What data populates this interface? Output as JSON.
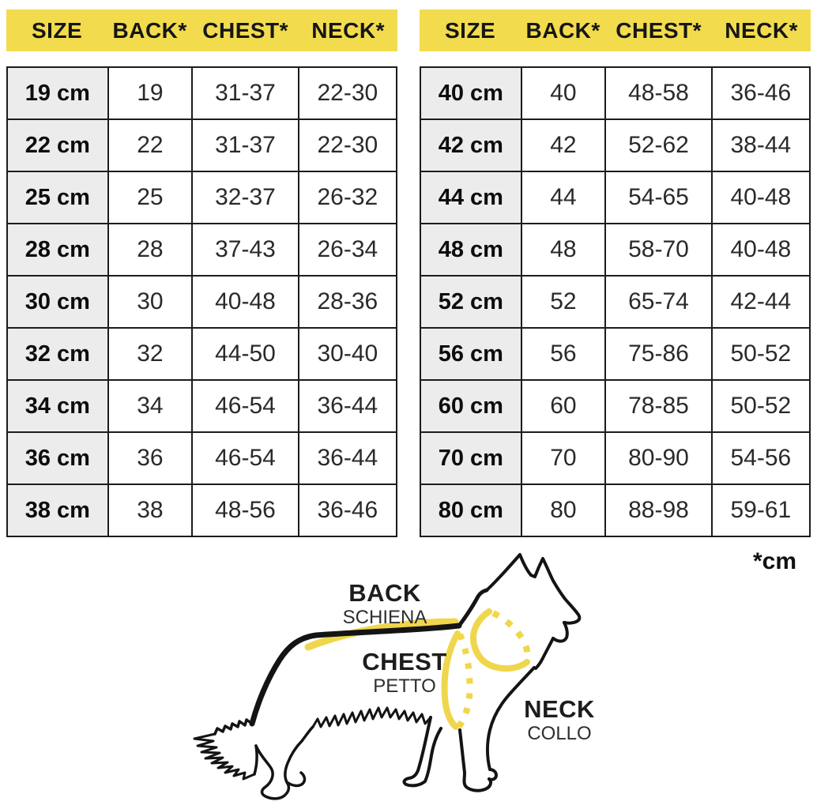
{
  "colors": {
    "accent_yellow": "#F2DC4E",
    "measure_yellow": "#F0D64B",
    "size_column_bg": "#ECECEC",
    "grid_line": "#1C1C1C",
    "text": "#111111"
  },
  "footnote": "*cm",
  "chart_data": [
    {
      "type": "table",
      "title": "Dog garment sizes — small (19–38 cm)",
      "headers": [
        "SIZE",
        "BACK*",
        "CHEST*",
        "NECK*"
      ],
      "rows": [
        [
          "19 cm",
          "19",
          "31-37",
          "22-30"
        ],
        [
          "22 cm",
          "22",
          "31-37",
          "22-30"
        ],
        [
          "25 cm",
          "25",
          "32-37",
          "26-32"
        ],
        [
          "28 cm",
          "28",
          "37-43",
          "26-34"
        ],
        [
          "30 cm",
          "30",
          "40-48",
          "28-36"
        ],
        [
          "32 cm",
          "32",
          "44-50",
          "30-40"
        ],
        [
          "34 cm",
          "34",
          "46-54",
          "36-44"
        ],
        [
          "36 cm",
          "36",
          "46-54",
          "36-44"
        ],
        [
          "38 cm",
          "38",
          "48-56",
          "36-46"
        ]
      ]
    },
    {
      "type": "table",
      "title": "Dog garment sizes — large (40–80 cm)",
      "headers": [
        "SIZE",
        "BACK*",
        "CHEST*",
        "NECK*"
      ],
      "rows": [
        [
          "40 cm",
          "40",
          "48-58",
          "36-46"
        ],
        [
          "42 cm",
          "42",
          "52-62",
          "38-44"
        ],
        [
          "44 cm",
          "44",
          "54-65",
          "40-48"
        ],
        [
          "48 cm",
          "48",
          "58-70",
          "40-48"
        ],
        [
          "52 cm",
          "52",
          "65-74",
          "42-44"
        ],
        [
          "56 cm",
          "56",
          "75-86",
          "50-52"
        ],
        [
          "60 cm",
          "60",
          "78-85",
          "50-52"
        ],
        [
          "70 cm",
          "70",
          "80-90",
          "54-56"
        ],
        [
          "80 cm",
          "80",
          "88-98",
          "59-61"
        ]
      ]
    }
  ],
  "diagram": {
    "back": {
      "label": "BACK",
      "sublabel": "SCHIENA"
    },
    "chest": {
      "label": "CHEST",
      "sublabel": "PETTO"
    },
    "neck": {
      "label": "NECK",
      "sublabel": "COLLO"
    }
  }
}
